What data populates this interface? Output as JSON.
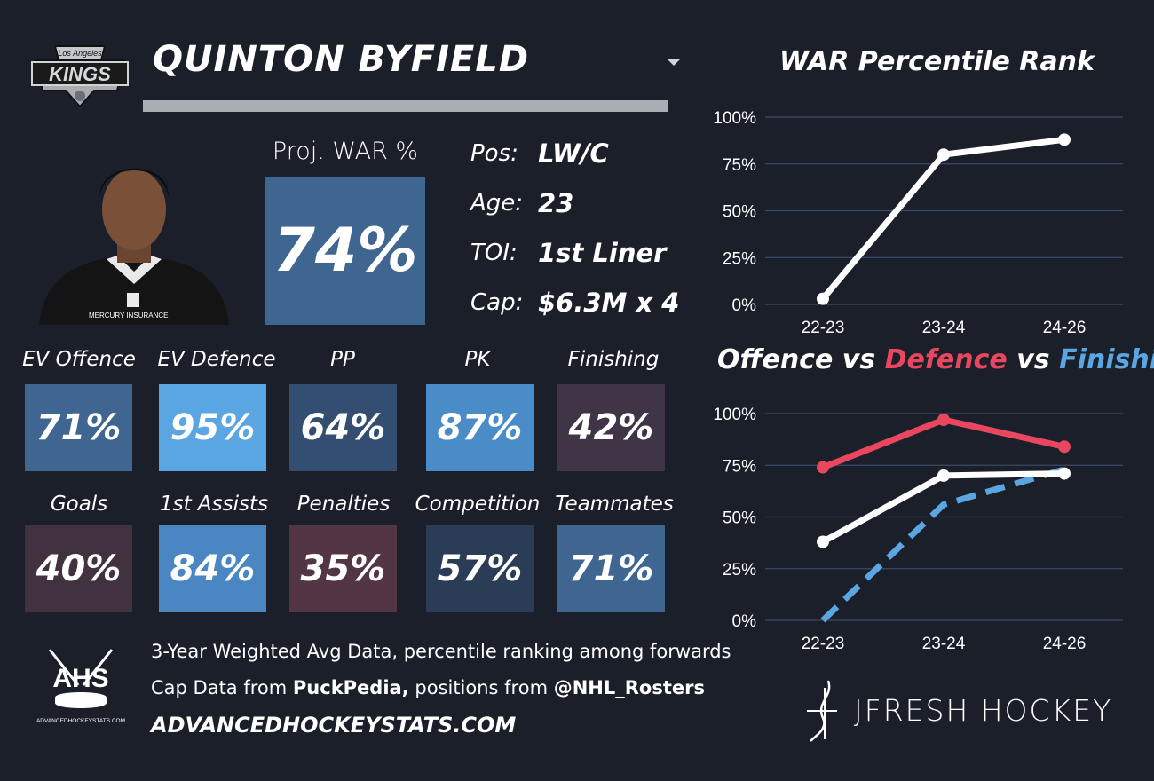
{
  "player": {
    "name": "QUINTON BYFIELD",
    "team_logo_text": [
      "Los Angeles",
      "KINGS"
    ],
    "jersey_text": "MERCURY INSURANCE"
  },
  "projection": {
    "label": "Proj. WAR %",
    "value": "74%"
  },
  "info": [
    {
      "label": "Pos:",
      "value": "LW/C"
    },
    {
      "label": "Age:",
      "value": "23"
    },
    {
      "label": "TOI:",
      "value": "1st Liner"
    },
    {
      "label": "Cap:",
      "value": "$6.3M x 4"
    }
  ],
  "stats": [
    {
      "label": "EV Offence",
      "value": "71%",
      "color": "#3e6690"
    },
    {
      "label": "EV Defence",
      "value": "95%",
      "color": "#5aa6e3"
    },
    {
      "label": "PP",
      "value": "64%",
      "color": "#334e70"
    },
    {
      "label": "PK",
      "value": "87%",
      "color": "#4a8cc7"
    },
    {
      "label": "Finishing",
      "value": "42%",
      "color": "#3f3546"
    },
    {
      "label": "Goals",
      "value": "40%",
      "color": "#42313f"
    },
    {
      "label": "1st Assists",
      "value": "84%",
      "color": "#4a87c2"
    },
    {
      "label": "Penalties",
      "value": "35%",
      "color": "#533645"
    },
    {
      "label": "Competition",
      "value": "57%",
      "color": "#2a3c56"
    },
    {
      "label": "Teammates",
      "value": "71%",
      "color": "#3e6690"
    }
  ],
  "footer": {
    "line1": "3-Year Weighted Avg Data, percentile ranking among forwards",
    "line2_prefix": "Cap Data from ",
    "line2_bold1": "PuckPedia,",
    "line2_mid": " positions from ",
    "line2_bold2": "@NHL_Rosters",
    "site": "ADVANCEDHOCKEYSTATS.COM",
    "ahs_logo_text": "AHS",
    "ahs_logo_subtext": "ADVANCEDHOCKEYSTATS.COM"
  },
  "branding": {
    "jfresh": "JFRESH HOCKEY"
  },
  "colors": {
    "background": "#1b1f2a",
    "offence": "#ffffff",
    "defence": "#e8475f",
    "finishing": "#5aa6e3"
  },
  "chart_data": [
    {
      "type": "line",
      "title": "WAR Percentile Rank",
      "categories": [
        "22-23",
        "23-24",
        "24-26"
      ],
      "ylim": [
        0,
        100
      ],
      "yticks": [
        "0%",
        "25%",
        "50%",
        "75%",
        "100%"
      ],
      "grid": true,
      "series": [
        {
          "values": [
            3,
            80,
            88
          ],
          "color": "#ffffff",
          "dashed": false
        }
      ]
    },
    {
      "type": "line",
      "title_parts": [
        {
          "text": "Offence",
          "color": "#ffffff"
        },
        {
          "text": " vs ",
          "color": "#ffffff"
        },
        {
          "text": "Defence",
          "color": "#e8475f"
        },
        {
          "text": " vs ",
          "color": "#ffffff"
        },
        {
          "text": "Finishing",
          "color": "#5aa6e3"
        }
      ],
      "categories": [
        "22-23",
        "23-24",
        "24-26"
      ],
      "ylim": [
        0,
        100
      ],
      "yticks": [
        "0%",
        "25%",
        "50%",
        "75%",
        "100%"
      ],
      "grid": true,
      "series": [
        {
          "name": "Defence",
          "values": [
            74,
            97,
            84
          ],
          "color": "#e8475f",
          "dashed": false
        },
        {
          "name": "Finishing",
          "values": [
            0,
            56,
            73
          ],
          "color": "#5aa6e3",
          "dashed": true
        },
        {
          "name": "Offence",
          "values": [
            38,
            70,
            71
          ],
          "color": "#ffffff",
          "dashed": false
        }
      ]
    }
  ]
}
